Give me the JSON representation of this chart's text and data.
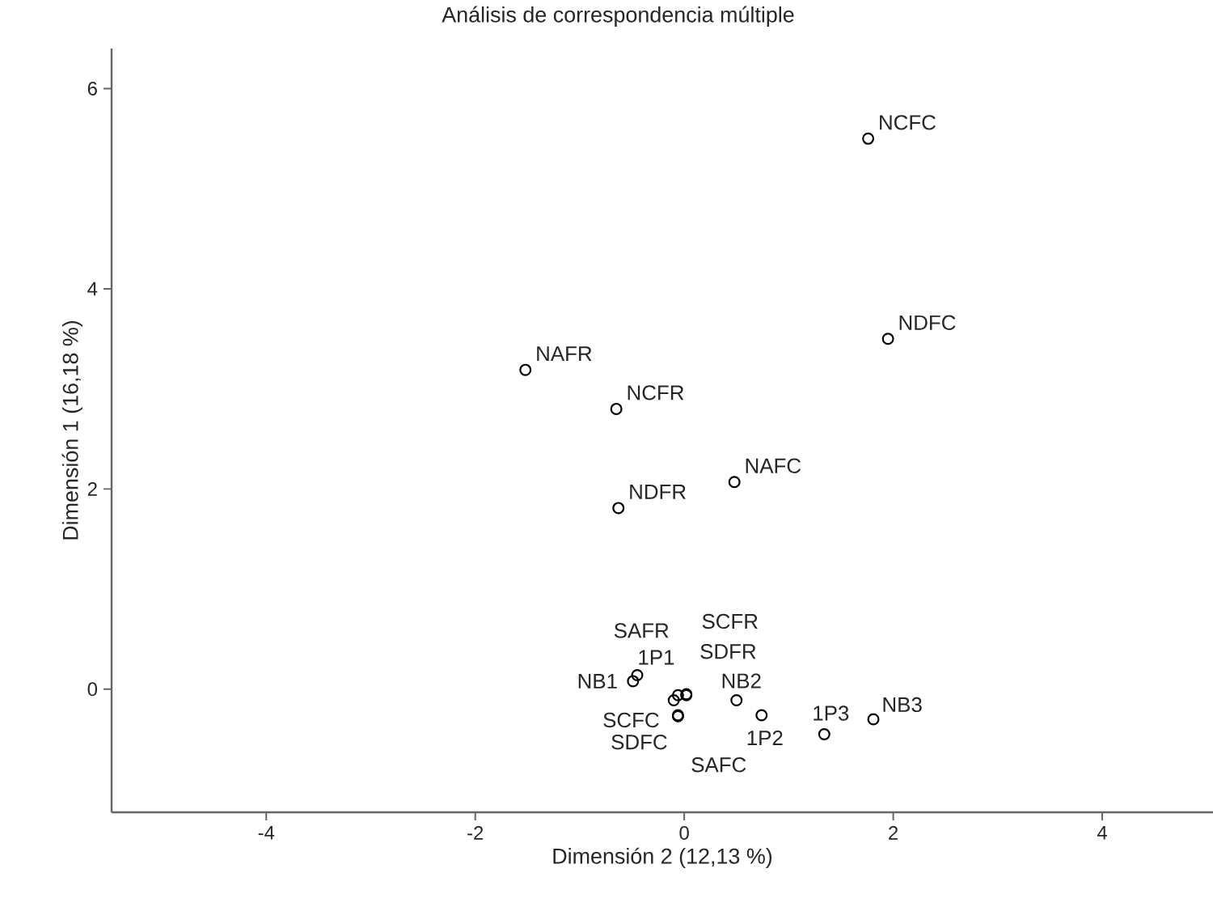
{
  "chart_data": {
    "type": "scatter",
    "title": "Análisis de correspondencia múltiple",
    "xlabel": "Dimensión 2 (12,13 %)",
    "ylabel": "Dimensión 1 (16,18 %)",
    "x": [
      1.76,
      1.95,
      -1.52,
      -0.65,
      0.48,
      -0.63,
      -0.49,
      -0.45,
      -0.1,
      0.02,
      -0.06,
      -0.06,
      -0.06,
      0.02,
      0.5,
      0.74,
      1.34,
      1.81
    ],
    "series": [
      {
        "color": "#000000",
        "values": [
          5.5,
          3.5,
          3.19,
          2.8,
          2.07,
          1.81,
          0.08,
          0.14,
          -0.11,
          -0.05,
          -0.06,
          -0.26,
          -0.27,
          -0.06,
          -0.11,
          -0.26,
          -0.45,
          -0.3
        ],
        "value_labels": [
          "NCFC",
          "NDFC",
          "NAFR",
          "NCFR",
          "NAFC",
          "NDFR",
          "NB1",
          "1P1",
          "SAFR",
          "SCFR",
          "SDFR",
          "SCFC",
          "SDFC",
          "SAFC",
          "NB2",
          "1P2",
          "1P3",
          "NB3"
        ]
      }
    ],
    "xlim": [
      -5.48,
      5.06
    ],
    "ylim": [
      -1.23,
      6.4
    ],
    "xticks": [
      -4,
      -2,
      0,
      2,
      4
    ],
    "yticks": [
      0,
      2,
      4,
      6
    ],
    "grid": false,
    "marker": "circle"
  }
}
